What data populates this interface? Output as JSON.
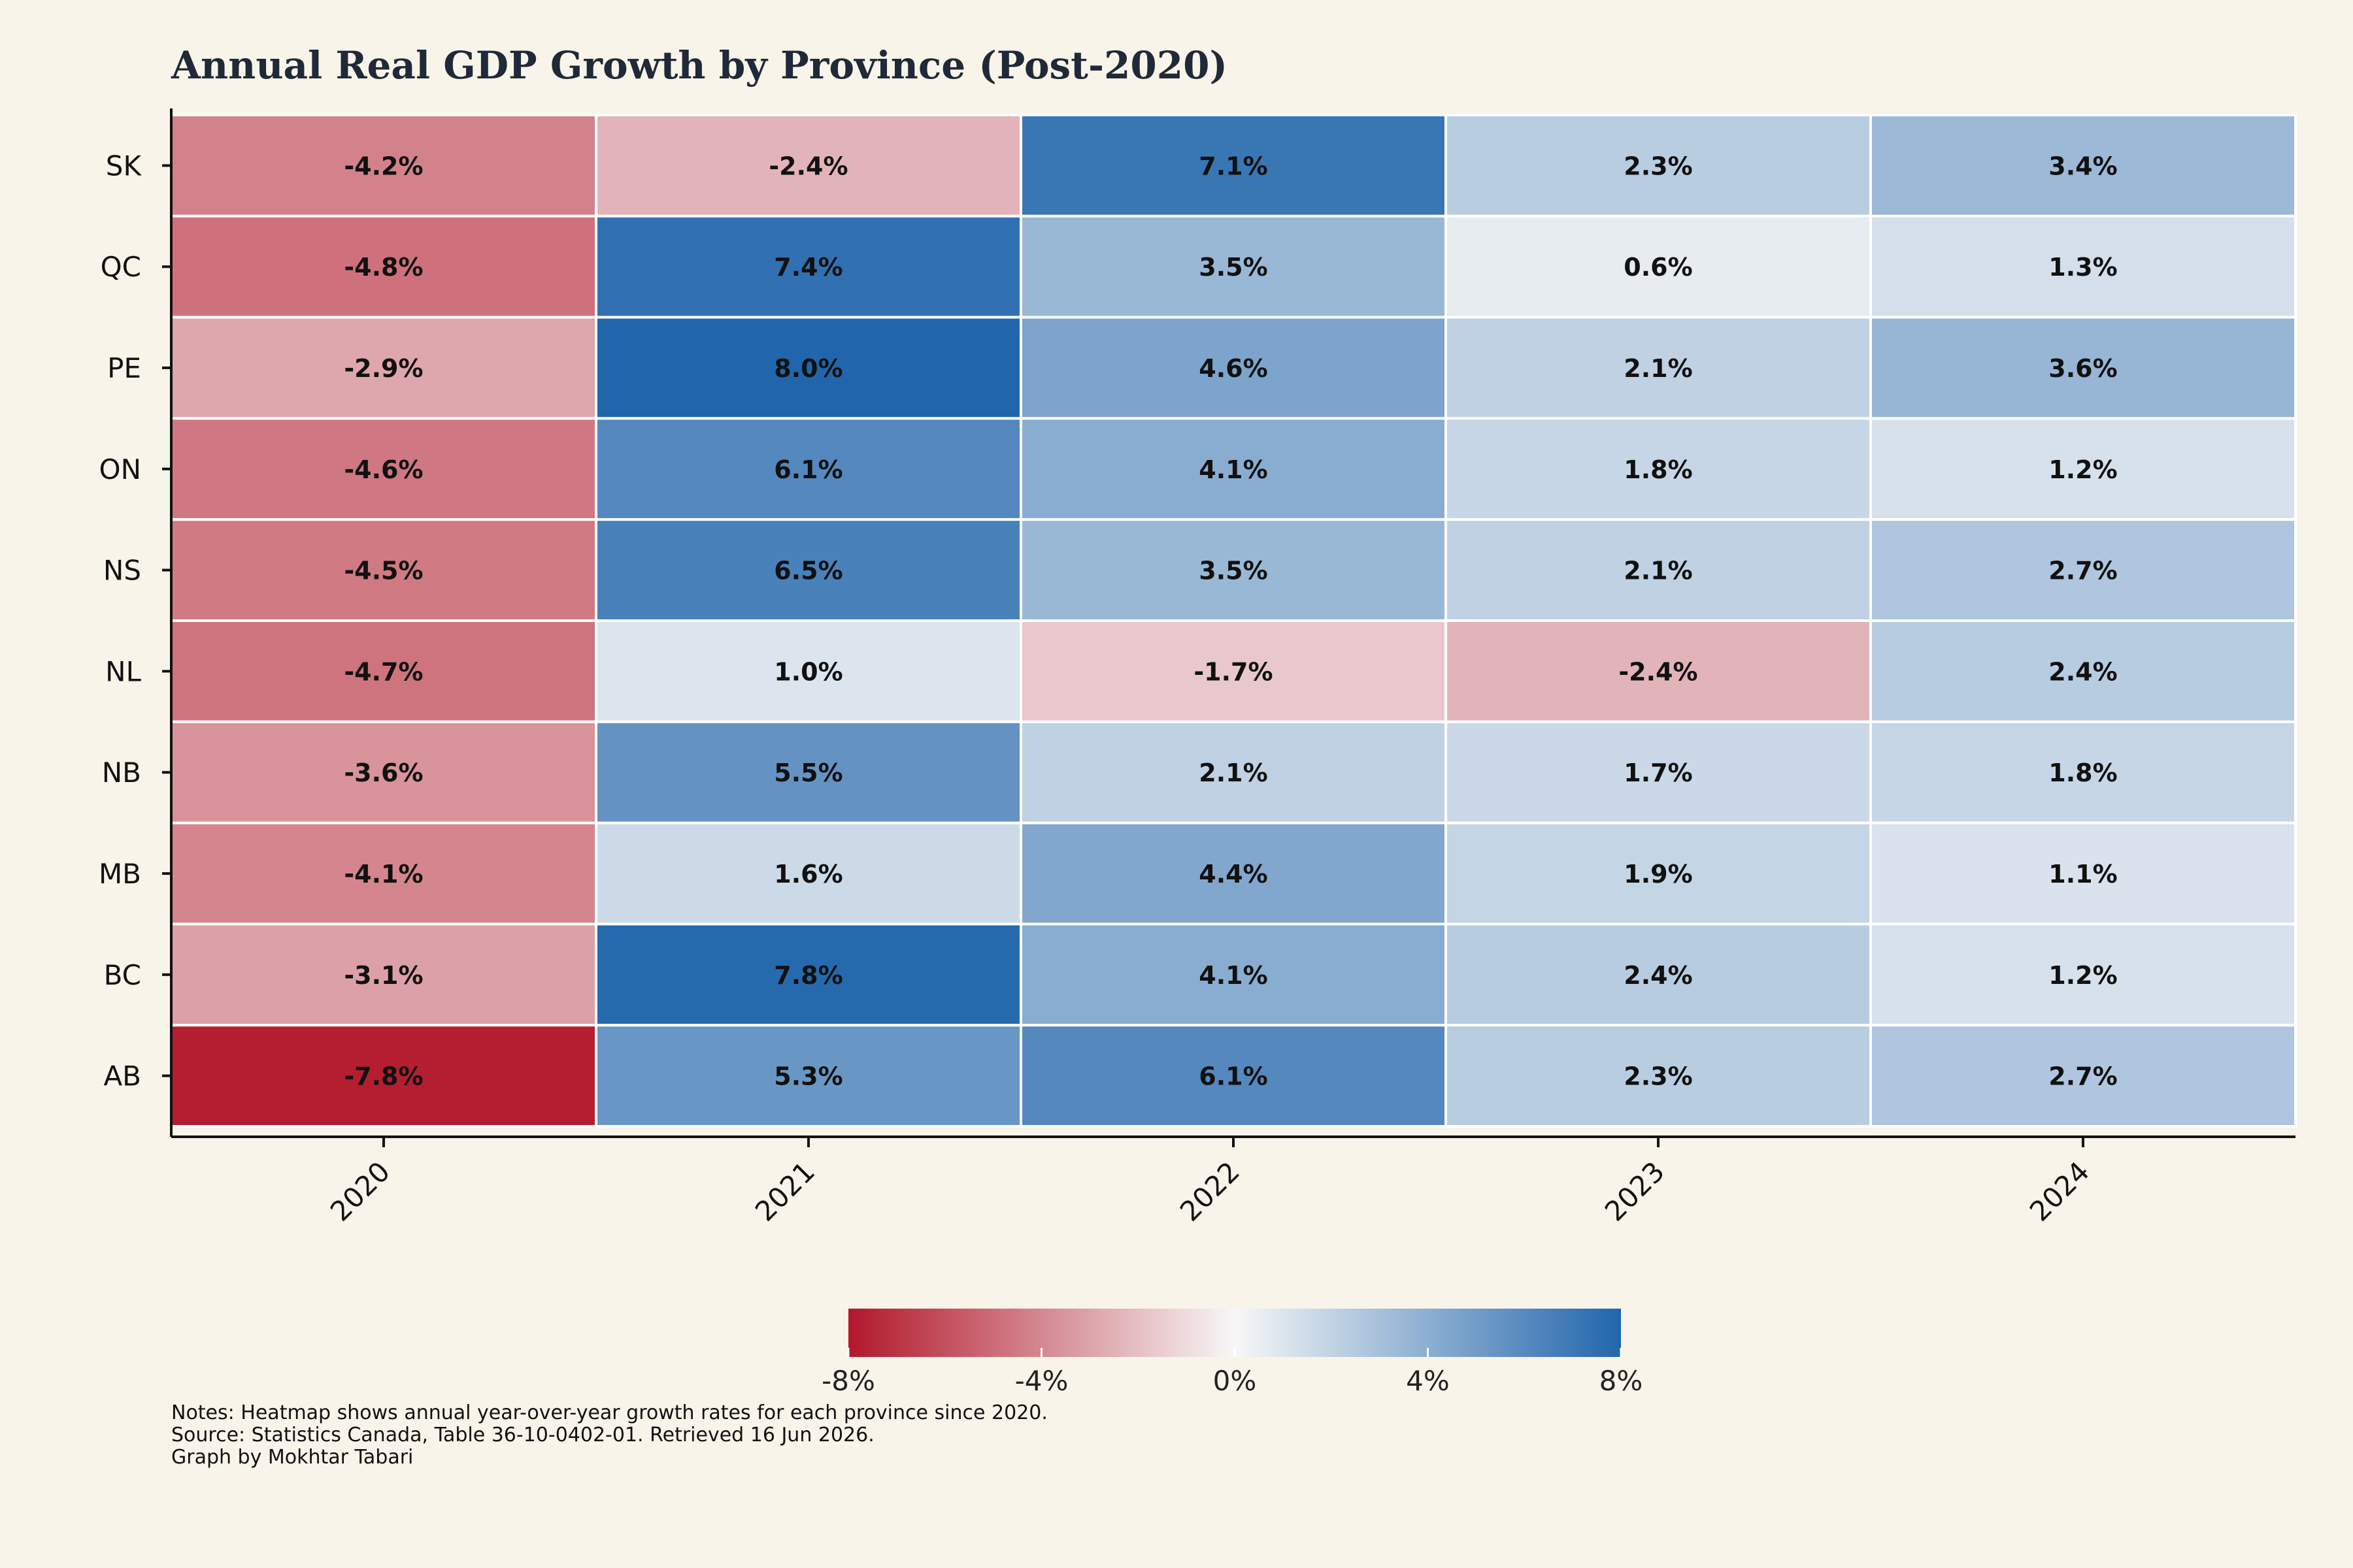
{
  "chart_data": {
    "type": "heatmap",
    "title": "Annual Real GDP Growth by Province (Post-2020)",
    "xlabel": "",
    "ylabel": "",
    "x_categories": [
      "2020",
      "2021",
      "2022",
      "2023",
      "2024"
    ],
    "y_categories": [
      "SK",
      "QC",
      "PE",
      "ON",
      "NS",
      "NL",
      "NB",
      "MB",
      "BC",
      "AB"
    ],
    "value_format": "percent_1dp",
    "values": [
      [
        -4.2,
        -2.4,
        7.1,
        2.3,
        3.4
      ],
      [
        -4.8,
        7.4,
        3.5,
        0.6,
        1.3
      ],
      [
        -2.9,
        8.0,
        4.6,
        2.1,
        3.6
      ],
      [
        -4.6,
        6.1,
        4.1,
        1.8,
        1.2
      ],
      [
        -4.5,
        6.5,
        3.5,
        2.1,
        2.7
      ],
      [
        -4.7,
        1.0,
        -1.7,
        -2.4,
        2.4
      ],
      [
        -3.6,
        5.5,
        2.1,
        1.7,
        1.8
      ],
      [
        -4.1,
        1.6,
        4.4,
        1.9,
        1.1
      ],
      [
        -3.1,
        7.8,
        4.1,
        2.4,
        1.2
      ],
      [
        -7.8,
        5.3,
        6.1,
        2.3,
        2.7
      ]
    ],
    "colorscale": {
      "type": "diverging",
      "min": -8,
      "max": 8,
      "colors": [
        "#b2182b",
        "#f7f7f7",
        "#2166ac"
      ],
      "ticks": [
        -8,
        -4,
        0,
        4,
        8
      ],
      "tick_labels": [
        "-8%",
        "-4%",
        "0%",
        "4%",
        "8%"
      ],
      "orientation": "horizontal",
      "placement": "bottom"
    },
    "grid": false,
    "legend": "colorbar-bottom"
  },
  "notes": {
    "line1": "Notes: Heatmap shows annual year-over-year growth rates for each province since 2020.",
    "line2": "Source: Statistics Canada, Table 36-10-0402-01. Retrieved 16 Jun 2026.",
    "line3": "Graph by Mokhtar Tabari"
  },
  "colors": {
    "background": "#f8f4ea",
    "title": "#1f2937",
    "axis": "#111111",
    "cell_border": "#ffffff"
  }
}
